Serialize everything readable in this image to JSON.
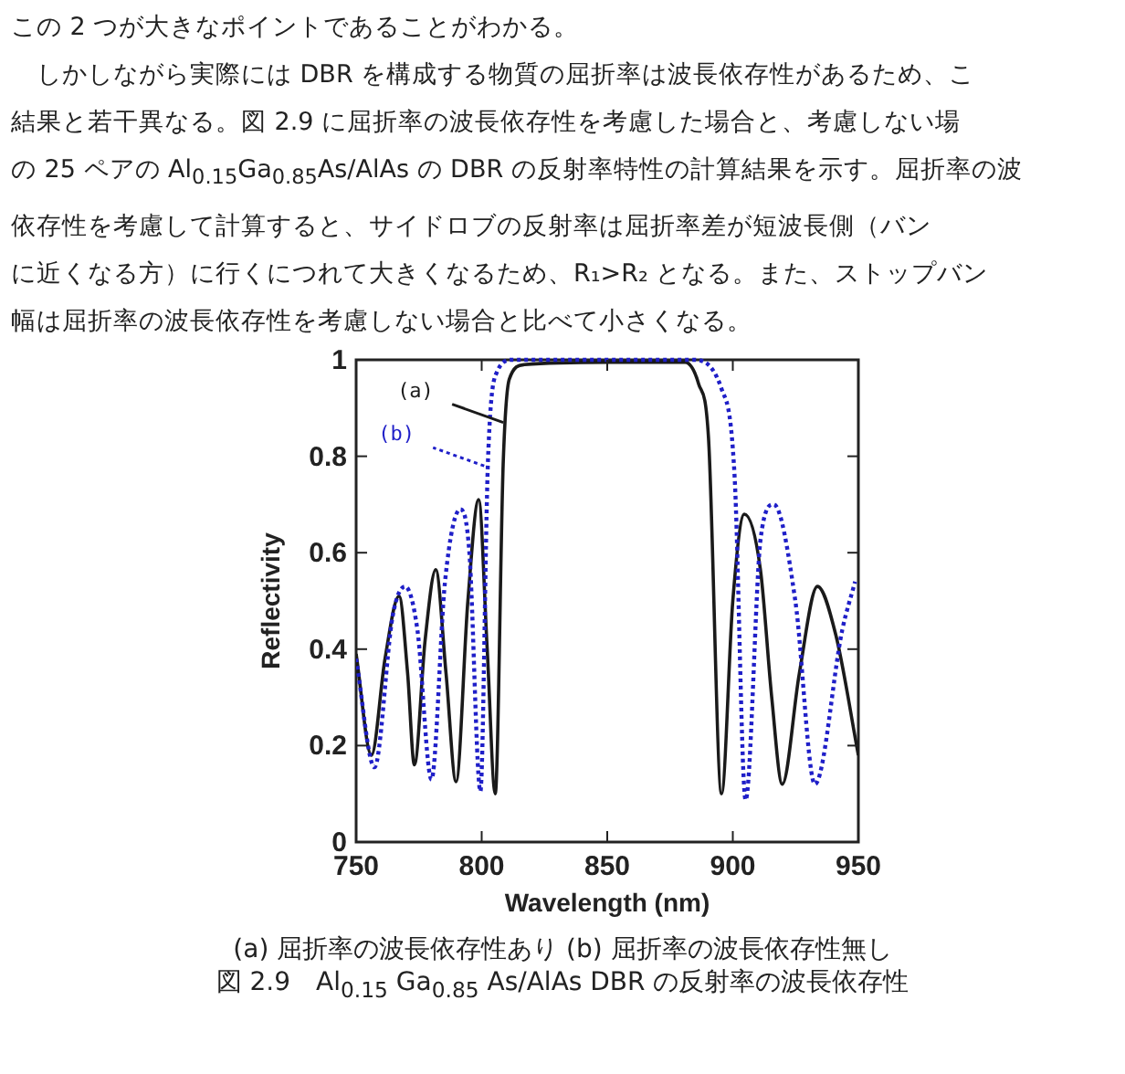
{
  "chart_data": {
    "type": "line",
    "title": "図 2.9　Al$_{0.15}$ Ga$_{0.85}$ As/AlAs DBR の反射率の波長依存性",
    "subtitle": "(a) 屈折率の波長依存性あり (b) 屈折率の波長依存性無し",
    "xlabel": "Wavelength (nm)",
    "ylabel": "Reflectivity",
    "xlim": [
      750,
      950
    ],
    "xticks": [
      750,
      800,
      850,
      900,
      950
    ],
    "ylim": [
      0,
      1
    ],
    "yticks": [
      0,
      0.2,
      0.4,
      0.6,
      0.8,
      1
    ],
    "grid": false,
    "marker": "none",
    "series": [
      {
        "color": "#1a1a1a",
        "line_style": "solid",
        "x": [
          750,
          756.1,
          761.5,
          767.1,
          770.5,
          773.2,
          777.5,
          781.7,
          785.8,
          789.8,
          794.5,
          798.8,
          802.2,
          805.4,
          808.6,
          811,
          817,
          850,
          881,
          886.4,
          890.3,
          895.5,
          900,
          904.6,
          911,
          915.5,
          919.7,
          926.5,
          933.7,
          941,
          950
        ],
        "values": [
          0.39,
          0.18,
          0.38,
          0.51,
          0.35,
          0.16,
          0.42,
          0.565,
          0.35,
          0.125,
          0.5,
          0.71,
          0.4,
          0.1,
          0.79,
          0.96,
          0.99,
          0.995,
          0.995,
          0.95,
          0.84,
          0.1,
          0.5,
          0.68,
          0.565,
          0.3,
          0.12,
          0.35,
          0.53,
          0.43,
          0.18
        ]
      },
      {
        "color": "#1f1fc8",
        "line_style": "dotted",
        "x": [
          750,
          757.3,
          764.6,
          769.5,
          774.4,
          780,
          785.4,
          791.5,
          795.1,
          799.5,
          802.5,
          806.1,
          812.2,
          850,
          883.8,
          895.5,
          900.7,
          905.1,
          911.1,
          916.3,
          924.9,
          932.7,
          943.6,
          948.7
        ],
        "values": [
          0.38,
          0.155,
          0.47,
          0.53,
          0.44,
          0.13,
          0.54,
          0.69,
          0.6,
          0.105,
          0.79,
          0.975,
          1,
          1,
          1,
          0.94,
          0.76,
          0.087,
          0.63,
          0.7,
          0.5,
          0.12,
          0.44,
          0.54
        ]
      }
    ],
    "annotations": [
      "この 2 つが大きなポイントであることがわかる。",
      "　しかしながら実際には DBR を構成する物質の屈折率は波長依存性があるため、こ",
      "結果と若干異なる。図 2.9 に屈折率の波長依存性を考慮した場合と、考慮しない場",
      "の 25 ペアの Al$_{0.15}$Ga$_{0.85}$As/AlAs の DBR の反射率特性の計算結果を示す。屈折率の波",
      "依存性を考慮して計算すると、サイドロブの反射率は屈折率差が短波長側（バン",
      "に近くなる方）に行くにつれて大きくなるため、R₁>R₂ となる。また、ストップバン",
      "幅は屈折率の波長依存性を考慮しない場合と比べて小さくなる。",
      {
        "text": "(a)",
        "x": 808.6,
        "y": 0.87
      },
      {
        "text": "(b)",
        "x": 801,
        "y": 0.78
      }
    ]
  }
}
